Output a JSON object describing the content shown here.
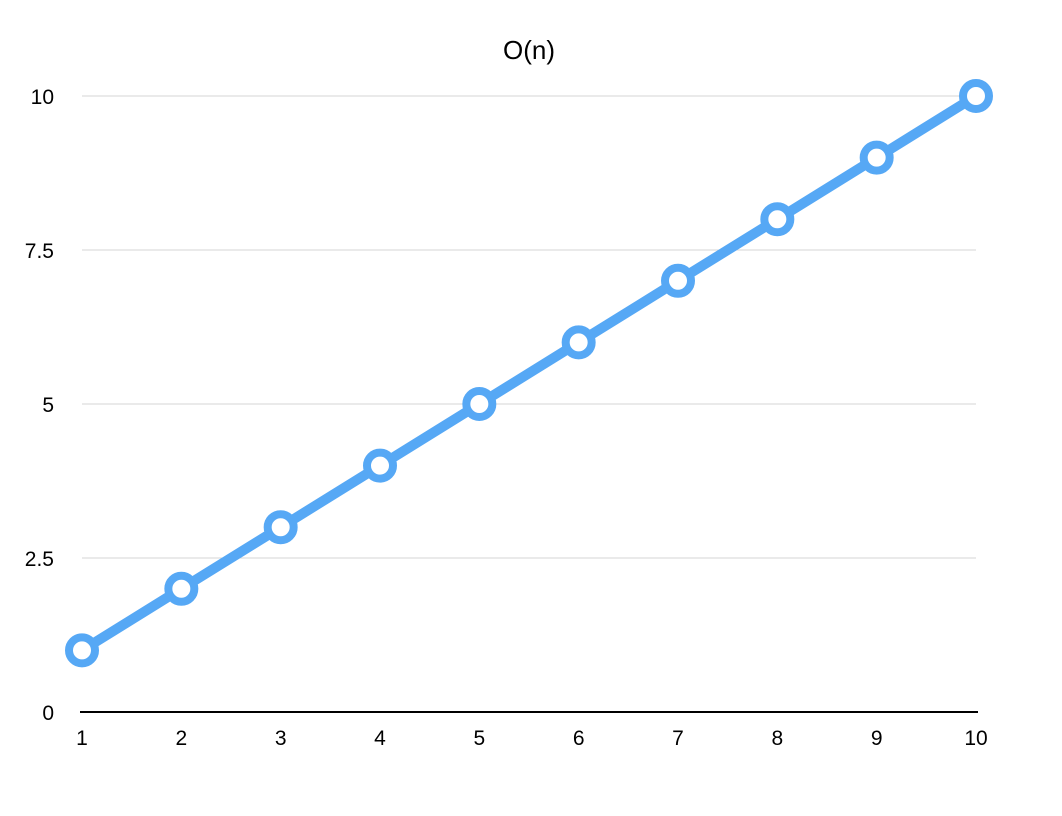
{
  "chart_data": {
    "type": "line",
    "title": "O(n)",
    "xlabel": "",
    "ylabel": "",
    "x": [
      1,
      2,
      3,
      4,
      5,
      6,
      7,
      8,
      9,
      10
    ],
    "series": [
      {
        "values": [
          1,
          2,
          3,
          4,
          5,
          6,
          7,
          8,
          9,
          10
        ]
      }
    ],
    "y_ticks": [
      0,
      2.5,
      5,
      7.5,
      10
    ],
    "y_tick_labels": [
      "0",
      "2.5",
      "5",
      "7.5",
      "10"
    ],
    "x_tick_labels": [
      "1",
      "2",
      "3",
      "4",
      "5",
      "6",
      "7",
      "8",
      "9",
      "10"
    ],
    "ylim": [
      0,
      10
    ],
    "xlim": [
      1,
      10
    ],
    "grid": true,
    "legend": "none",
    "colors": {
      "series": "#56a8f5",
      "marker_fill": "#ffffff",
      "grid": "#d6d6d6",
      "axis": "#000000"
    }
  }
}
